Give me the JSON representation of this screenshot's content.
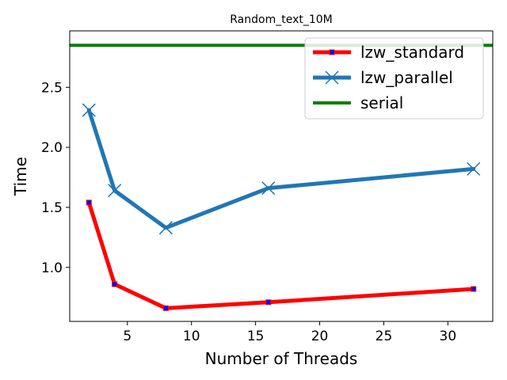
{
  "chart_data": {
    "type": "line",
    "title": "Random_text_10M",
    "xlabel": "Number of Threads",
    "ylabel": "Time",
    "xlim": [
      0.5,
      33.5
    ],
    "ylim": [
      0.55,
      2.97
    ],
    "xticks": [
      5,
      10,
      15,
      20,
      25,
      30
    ],
    "yticks": [
      1.0,
      1.5,
      2.0,
      2.5
    ],
    "xtick_labels": [
      "5",
      "10",
      "15",
      "20",
      "25",
      "30"
    ],
    "ytick_labels": [
      "1.0",
      "1.5",
      "2.0",
      "2.5"
    ],
    "grid": false,
    "legend_position": "upper right",
    "series": [
      {
        "name": "lzw_standard",
        "x": [
          2,
          4,
          8,
          16,
          32
        ],
        "y": [
          1.54,
          0.86,
          0.66,
          0.71,
          0.82
        ],
        "color": "#ff0000",
        "marker_color": "#0000ff",
        "marker": "square"
      },
      {
        "name": "lzw_parallel",
        "x": [
          2,
          4,
          8,
          16,
          32
        ],
        "y": [
          2.31,
          1.64,
          1.33,
          1.66,
          1.82
        ],
        "color": "#1f77b4",
        "marker": "x"
      },
      {
        "name": "serial",
        "type": "hline",
        "y": 2.85,
        "color": "#008000"
      }
    ]
  }
}
